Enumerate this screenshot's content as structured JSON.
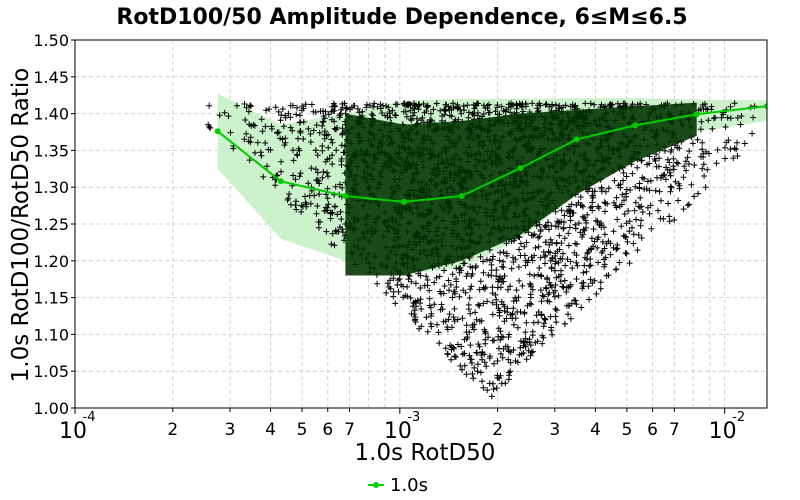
{
  "chart_data": {
    "type": "scatter",
    "title": "RotD100/50 Amplitude Dependence, 6≤M≤6.5",
    "xlabel": "1.0s RotD50",
    "ylabel": "1.0s RotD100/RotD50 Ratio",
    "xscale": "log",
    "xlim": [
      0.0001,
      0.0135
    ],
    "ylim": [
      1.0,
      1.5
    ],
    "grid": true,
    "legend_position": "bottom-center",
    "x_ticks": [
      {
        "value": 0.0001,
        "base": "10",
        "exp": "-4",
        "major": true
      },
      {
        "value": 0.0002,
        "label": "2"
      },
      {
        "value": 0.0003,
        "label": "3"
      },
      {
        "value": 0.0004,
        "label": "4"
      },
      {
        "value": 0.0005,
        "label": "5"
      },
      {
        "value": 0.0006,
        "label": "6"
      },
      {
        "value": 0.0007,
        "label": "7"
      },
      {
        "value": 0.001,
        "base": "10",
        "exp": "-3",
        "major": true
      },
      {
        "value": 0.002,
        "label": "2"
      },
      {
        "value": 0.003,
        "label": "3"
      },
      {
        "value": 0.004,
        "label": "4"
      },
      {
        "value": 0.005,
        "label": "5"
      },
      {
        "value": 0.006,
        "label": "6"
      },
      {
        "value": 0.007,
        "label": "7"
      },
      {
        "value": 0.01,
        "base": "10",
        "exp": "-2",
        "major": true
      }
    ],
    "x_minor_grid": [
      0.0008,
      0.0009,
      0.008,
      0.009
    ],
    "y_ticks": [
      "1.00",
      "1.05",
      "1.10",
      "1.15",
      "1.20",
      "1.25",
      "1.30",
      "1.35",
      "1.40",
      "1.45",
      "1.50"
    ],
    "series": [
      {
        "name": "1.0s",
        "type": "line",
        "color": "#00cc00",
        "x": [
          0.000275,
          0.00043,
          0.00068,
          0.00103,
          0.00155,
          0.00235,
          0.0035,
          0.0053,
          0.0082,
          0.0135
        ],
        "y": [
          1.376,
          1.308,
          1.288,
          1.28,
          1.288,
          1.326,
          1.365,
          1.384,
          1.399,
          1.41
        ]
      }
    ],
    "bands": [
      {
        "name": "outer band",
        "color": "#ccf2cc",
        "x": [
          0.000275,
          0.00043,
          0.00068,
          0.00103,
          0.00155,
          0.00235,
          0.0035,
          0.0053,
          0.0082,
          0.0135
        ],
        "upper": [
          1.427,
          1.385,
          1.4,
          1.418,
          1.42,
          1.42,
          1.421,
          1.421,
          1.419,
          1.418
        ],
        "lower": [
          1.325,
          1.23,
          1.2,
          1.182,
          1.19,
          1.23,
          1.29,
          1.34,
          1.375,
          1.39
        ]
      },
      {
        "name": "inner band",
        "color": "#003300",
        "x": [
          0.00068,
          0.00103,
          0.00155,
          0.00235,
          0.0035,
          0.0053,
          0.0082
        ],
        "upper": [
          1.4,
          1.385,
          1.39,
          1.4,
          1.405,
          1.41,
          1.415
        ],
        "lower": [
          1.18,
          1.18,
          1.2,
          1.235,
          1.29,
          1.335,
          1.37
        ]
      }
    ],
    "scatter": {
      "marker": "+",
      "color": "#000000",
      "cluster_center_x": 0.0019,
      "max_ratio": 1.414
    },
    "legend": [
      {
        "label": "1.0s",
        "color": "#00cc00"
      }
    ]
  }
}
